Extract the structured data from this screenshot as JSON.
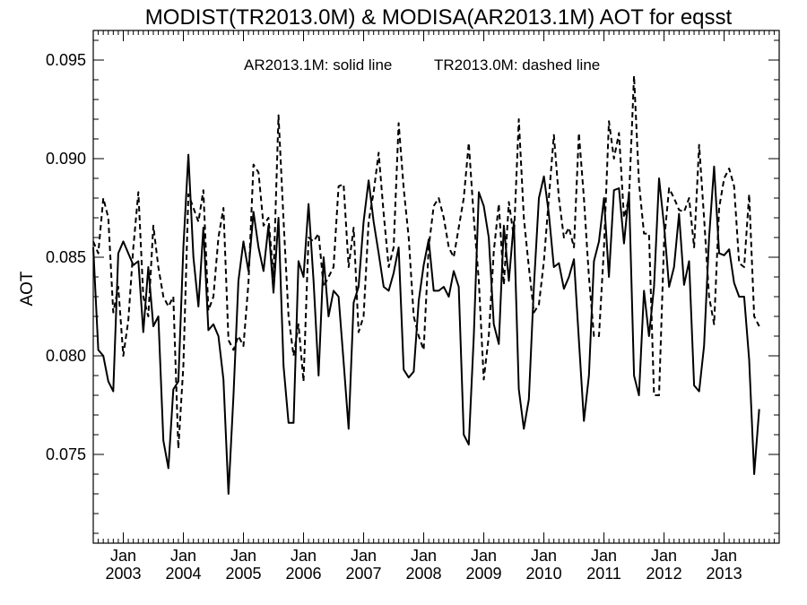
{
  "chart_data": {
    "type": "line",
    "title": "MODIST(TR2013.0M) & MODISA(AR2013.1M)  AOT for eqsst",
    "legend_text": {
      "solid": "AR2013.1M: solid line",
      "dashed": "TR2013.0M: dashed line"
    },
    "ylabel": "AOT",
    "xlabel": "",
    "x_range": [
      "2002-07",
      "2013-12"
    ],
    "ylim": [
      0.0705,
      0.0965
    ],
    "y_ticks": [
      0.075,
      0.08,
      0.085,
      0.09,
      0.095
    ],
    "y_tick_labels": [
      "0.075",
      "0.080",
      "0.085",
      "0.090",
      "0.095"
    ],
    "x_ticks": [
      {
        "month": "2003-01",
        "top": "Jan",
        "bottom": "2003"
      },
      {
        "month": "2004-01",
        "top": "Jan",
        "bottom": "2004"
      },
      {
        "month": "2005-01",
        "top": "Jan",
        "bottom": "2005"
      },
      {
        "month": "2006-01",
        "top": "Jan",
        "bottom": "2006"
      },
      {
        "month": "2007-01",
        "top": "Jan",
        "bottom": "2007"
      },
      {
        "month": "2008-01",
        "top": "Jan",
        "bottom": "2008"
      },
      {
        "month": "2009-01",
        "top": "Jan",
        "bottom": "2009"
      },
      {
        "month": "2010-01",
        "top": "Jan",
        "bottom": "2010"
      },
      {
        "month": "2011-01",
        "top": "Jan",
        "bottom": "2011"
      },
      {
        "month": "2012-01",
        "top": "Jan",
        "bottom": "2012"
      },
      {
        "month": "2013-01",
        "top": "Jan",
        "bottom": "2013"
      }
    ],
    "grid": false,
    "series": [
      {
        "key": "ar",
        "style": "solid",
        "color": "#000000",
        "points": [
          [
            "2002-07",
            0.0855
          ],
          [
            "2002-08",
            0.0803
          ],
          [
            "2002-09",
            0.08
          ],
          [
            "2002-10",
            0.0787
          ],
          [
            "2002-11",
            0.0782
          ],
          [
            "2002-12",
            0.0852
          ],
          [
            "2003-01",
            0.0858
          ],
          [
            "2003-02",
            0.0852
          ],
          [
            "2003-03",
            0.0846
          ],
          [
            "2003-04",
            0.0848
          ],
          [
            "2003-05",
            0.0812
          ],
          [
            "2003-06",
            0.0845
          ],
          [
            "2003-07",
            0.0815
          ],
          [
            "2003-08",
            0.082
          ],
          [
            "2003-09",
            0.0757
          ],
          [
            "2003-10",
            0.0743
          ],
          [
            "2003-11",
            0.0783
          ],
          [
            "2003-12",
            0.0787
          ],
          [
            "2004-01",
            0.0855
          ],
          [
            "2004-02",
            0.0902
          ],
          [
            "2004-03",
            0.085
          ],
          [
            "2004-04",
            0.0825
          ],
          [
            "2004-05",
            0.0865
          ],
          [
            "2004-06",
            0.0813
          ],
          [
            "2004-07",
            0.0816
          ],
          [
            "2004-08",
            0.081
          ],
          [
            "2004-09",
            0.0788
          ],
          [
            "2004-10",
            0.073
          ],
          [
            "2004-11",
            0.078
          ],
          [
            "2004-12",
            0.0838
          ],
          [
            "2005-01",
            0.0858
          ],
          [
            "2005-02",
            0.0843
          ],
          [
            "2005-03",
            0.0873
          ],
          [
            "2005-04",
            0.0855
          ],
          [
            "2005-05",
            0.0843
          ],
          [
            "2005-06",
            0.0866
          ],
          [
            "2005-07",
            0.0832
          ],
          [
            "2005-08",
            0.087
          ],
          [
            "2005-09",
            0.0795
          ],
          [
            "2005-10",
            0.0766
          ],
          [
            "2005-11",
            0.0766
          ],
          [
            "2005-12",
            0.0848
          ],
          [
            "2006-01",
            0.084
          ],
          [
            "2006-02",
            0.0877
          ],
          [
            "2006-03",
            0.0838
          ],
          [
            "2006-04",
            0.079
          ],
          [
            "2006-05",
            0.085
          ],
          [
            "2006-06",
            0.082
          ],
          [
            "2006-07",
            0.0833
          ],
          [
            "2006-08",
            0.083
          ],
          [
            "2006-09",
            0.0797
          ],
          [
            "2006-10",
            0.0763
          ],
          [
            "2006-11",
            0.0827
          ],
          [
            "2006-12",
            0.0835
          ],
          [
            "2007-01",
            0.0868
          ],
          [
            "2007-02",
            0.0889
          ],
          [
            "2007-03",
            0.0868
          ],
          [
            "2007-04",
            0.0852
          ],
          [
            "2007-05",
            0.0835
          ],
          [
            "2007-06",
            0.0833
          ],
          [
            "2007-07",
            0.0842
          ],
          [
            "2007-08",
            0.0855
          ],
          [
            "2007-09",
            0.0793
          ],
          [
            "2007-10",
            0.0789
          ],
          [
            "2007-11",
            0.0792
          ],
          [
            "2007-12",
            0.0828
          ],
          [
            "2008-01",
            0.0846
          ],
          [
            "2008-02",
            0.0859
          ],
          [
            "2008-03",
            0.0833
          ],
          [
            "2008-04",
            0.0833
          ],
          [
            "2008-05",
            0.0835
          ],
          [
            "2008-06",
            0.083
          ],
          [
            "2008-07",
            0.0843
          ],
          [
            "2008-08",
            0.0835
          ],
          [
            "2008-09",
            0.076
          ],
          [
            "2008-10",
            0.0755
          ],
          [
            "2008-11",
            0.081
          ],
          [
            "2008-12",
            0.0883
          ],
          [
            "2009-01",
            0.0876
          ],
          [
            "2009-02",
            0.086
          ],
          [
            "2009-03",
            0.0816
          ],
          [
            "2009-04",
            0.0806
          ],
          [
            "2009-05",
            0.0866
          ],
          [
            "2009-06",
            0.0838
          ],
          [
            "2009-07",
            0.0868
          ],
          [
            "2009-08",
            0.0783
          ],
          [
            "2009-09",
            0.0763
          ],
          [
            "2009-10",
            0.0778
          ],
          [
            "2009-11",
            0.0835
          ],
          [
            "2009-12",
            0.088
          ],
          [
            "2010-01",
            0.0891
          ],
          [
            "2010-02",
            0.0872
          ],
          [
            "2010-03",
            0.0845
          ],
          [
            "2010-04",
            0.0847
          ],
          [
            "2010-05",
            0.0834
          ],
          [
            "2010-06",
            0.084
          ],
          [
            "2010-07",
            0.0849
          ],
          [
            "2010-08",
            0.0808
          ],
          [
            "2010-09",
            0.0767
          ],
          [
            "2010-10",
            0.079
          ],
          [
            "2010-11",
            0.0848
          ],
          [
            "2010-12",
            0.0858
          ],
          [
            "2011-01",
            0.088
          ],
          [
            "2011-02",
            0.084
          ],
          [
            "2011-03",
            0.0884
          ],
          [
            "2011-04",
            0.0885
          ],
          [
            "2011-05",
            0.0857
          ],
          [
            "2011-06",
            0.0883
          ],
          [
            "2011-07",
            0.079
          ],
          [
            "2011-08",
            0.078
          ],
          [
            "2011-09",
            0.0833
          ],
          [
            "2011-10",
            0.081
          ],
          [
            "2011-11",
            0.0835
          ],
          [
            "2011-12",
            0.089
          ],
          [
            "2012-01",
            0.0866
          ],
          [
            "2012-02",
            0.0835
          ],
          [
            "2012-03",
            0.0845
          ],
          [
            "2012-04",
            0.0872
          ],
          [
            "2012-05",
            0.0836
          ],
          [
            "2012-06",
            0.0848
          ],
          [
            "2012-07",
            0.0785
          ],
          [
            "2012-08",
            0.0782
          ],
          [
            "2012-09",
            0.0805
          ],
          [
            "2012-10",
            0.086
          ],
          [
            "2012-11",
            0.0896
          ],
          [
            "2012-12",
            0.0852
          ],
          [
            "2013-01",
            0.0851
          ],
          [
            "2013-02",
            0.0854
          ],
          [
            "2013-03",
            0.0837
          ],
          [
            "2013-04",
            0.083
          ],
          [
            "2013-05",
            0.083
          ],
          [
            "2013-06",
            0.0798
          ],
          [
            "2013-07",
            0.074
          ],
          [
            "2013-08",
            0.0773
          ]
        ]
      },
      {
        "key": "tr",
        "style": "dashed",
        "color": "#000000",
        "points": [
          [
            "2002-07",
            0.0858
          ],
          [
            "2002-08",
            0.0852
          ],
          [
            "2002-09",
            0.088
          ],
          [
            "2002-10",
            0.087
          ],
          [
            "2002-11",
            0.0822
          ],
          [
            "2002-12",
            0.0835
          ],
          [
            "2003-01",
            0.08
          ],
          [
            "2003-02",
            0.0818
          ],
          [
            "2003-03",
            0.0855
          ],
          [
            "2003-04",
            0.0883
          ],
          [
            "2003-05",
            0.083
          ],
          [
            "2003-06",
            0.082
          ],
          [
            "2003-07",
            0.0866
          ],
          [
            "2003-08",
            0.0845
          ],
          [
            "2003-09",
            0.083
          ],
          [
            "2003-10",
            0.0825
          ],
          [
            "2003-11",
            0.083
          ],
          [
            "2003-12",
            0.0753
          ],
          [
            "2004-01",
            0.0795
          ],
          [
            "2004-02",
            0.0882
          ],
          [
            "2004-03",
            0.0875
          ],
          [
            "2004-04",
            0.0868
          ],
          [
            "2004-05",
            0.0884
          ],
          [
            "2004-06",
            0.0823
          ],
          [
            "2004-07",
            0.083
          ],
          [
            "2004-08",
            0.086
          ],
          [
            "2004-09",
            0.0875
          ],
          [
            "2004-10",
            0.0808
          ],
          [
            "2004-11",
            0.0803
          ],
          [
            "2004-12",
            0.081
          ],
          [
            "2005-01",
            0.0805
          ],
          [
            "2005-02",
            0.0837
          ],
          [
            "2005-03",
            0.0897
          ],
          [
            "2005-04",
            0.0893
          ],
          [
            "2005-05",
            0.0866
          ],
          [
            "2005-06",
            0.087
          ],
          [
            "2005-07",
            0.084
          ],
          [
            "2005-08",
            0.0922
          ],
          [
            "2005-09",
            0.0869
          ],
          [
            "2005-10",
            0.082
          ],
          [
            "2005-11",
            0.08
          ],
          [
            "2005-12",
            0.0816
          ],
          [
            "2006-01",
            0.0787
          ],
          [
            "2006-02",
            0.086
          ],
          [
            "2006-03",
            0.0858
          ],
          [
            "2006-04",
            0.0862
          ],
          [
            "2006-05",
            0.0835
          ],
          [
            "2006-06",
            0.084
          ],
          [
            "2006-07",
            0.0845
          ],
          [
            "2006-08",
            0.0886
          ],
          [
            "2006-09",
            0.0887
          ],
          [
            "2006-10",
            0.0845
          ],
          [
            "2006-11",
            0.0865
          ],
          [
            "2006-12",
            0.0812
          ],
          [
            "2007-01",
            0.082
          ],
          [
            "2007-02",
            0.0868
          ],
          [
            "2007-03",
            0.0883
          ],
          [
            "2007-04",
            0.0903
          ],
          [
            "2007-05",
            0.0872
          ],
          [
            "2007-06",
            0.0845
          ],
          [
            "2007-07",
            0.0855
          ],
          [
            "2007-08",
            0.0918
          ],
          [
            "2007-09",
            0.0885
          ],
          [
            "2007-10",
            0.086
          ],
          [
            "2007-11",
            0.082
          ],
          [
            "2007-12",
            0.081
          ],
          [
            "2008-01",
            0.0803
          ],
          [
            "2008-02",
            0.0855
          ],
          [
            "2008-03",
            0.0876
          ],
          [
            "2008-04",
            0.088
          ],
          [
            "2008-05",
            0.087
          ],
          [
            "2008-06",
            0.0855
          ],
          [
            "2008-07",
            0.085
          ],
          [
            "2008-08",
            0.0865
          ],
          [
            "2008-09",
            0.088
          ],
          [
            "2008-10",
            0.0908
          ],
          [
            "2008-11",
            0.087
          ],
          [
            "2008-12",
            0.0838
          ],
          [
            "2009-01",
            0.0788
          ],
          [
            "2009-02",
            0.081
          ],
          [
            "2009-03",
            0.0853
          ],
          [
            "2009-04",
            0.0877
          ],
          [
            "2009-05",
            0.0836
          ],
          [
            "2009-06",
            0.0878
          ],
          [
            "2009-07",
            0.086
          ],
          [
            "2009-08",
            0.092
          ],
          [
            "2009-09",
            0.087
          ],
          [
            "2009-10",
            0.0845
          ],
          [
            "2009-11",
            0.0822
          ],
          [
            "2009-12",
            0.0826
          ],
          [
            "2010-01",
            0.0848
          ],
          [
            "2010-02",
            0.088
          ],
          [
            "2010-03",
            0.0912
          ],
          [
            "2010-04",
            0.088
          ],
          [
            "2010-05",
            0.086
          ],
          [
            "2010-06",
            0.0865
          ],
          [
            "2010-07",
            0.0855
          ],
          [
            "2010-08",
            0.0913
          ],
          [
            "2010-09",
            0.088
          ],
          [
            "2010-10",
            0.084
          ],
          [
            "2010-11",
            0.081
          ],
          [
            "2010-12",
            0.081
          ],
          [
            "2011-01",
            0.0855
          ],
          [
            "2011-02",
            0.0919
          ],
          [
            "2011-03",
            0.09
          ],
          [
            "2011-04",
            0.0913
          ],
          [
            "2011-05",
            0.087
          ],
          [
            "2011-06",
            0.088
          ],
          [
            "2011-07",
            0.0942
          ],
          [
            "2011-08",
            0.0888
          ],
          [
            "2011-09",
            0.0862
          ],
          [
            "2011-10",
            0.0862
          ],
          [
            "2011-11",
            0.078
          ],
          [
            "2011-12",
            0.078
          ],
          [
            "2012-01",
            0.0858
          ],
          [
            "2012-02",
            0.0885
          ],
          [
            "2012-03",
            0.088
          ],
          [
            "2012-04",
            0.0874
          ],
          [
            "2012-05",
            0.0873
          ],
          [
            "2012-06",
            0.088
          ],
          [
            "2012-07",
            0.0855
          ],
          [
            "2012-08",
            0.0907
          ],
          [
            "2012-09",
            0.087
          ],
          [
            "2012-10",
            0.083
          ],
          [
            "2012-11",
            0.0816
          ],
          [
            "2012-12",
            0.0875
          ],
          [
            "2013-01",
            0.089
          ],
          [
            "2013-02",
            0.0895
          ],
          [
            "2013-03",
            0.0886
          ],
          [
            "2013-04",
            0.0847
          ],
          [
            "2013-05",
            0.0845
          ],
          [
            "2013-06",
            0.0882
          ],
          [
            "2013-07",
            0.082
          ],
          [
            "2013-08",
            0.0815
          ]
        ]
      }
    ]
  }
}
